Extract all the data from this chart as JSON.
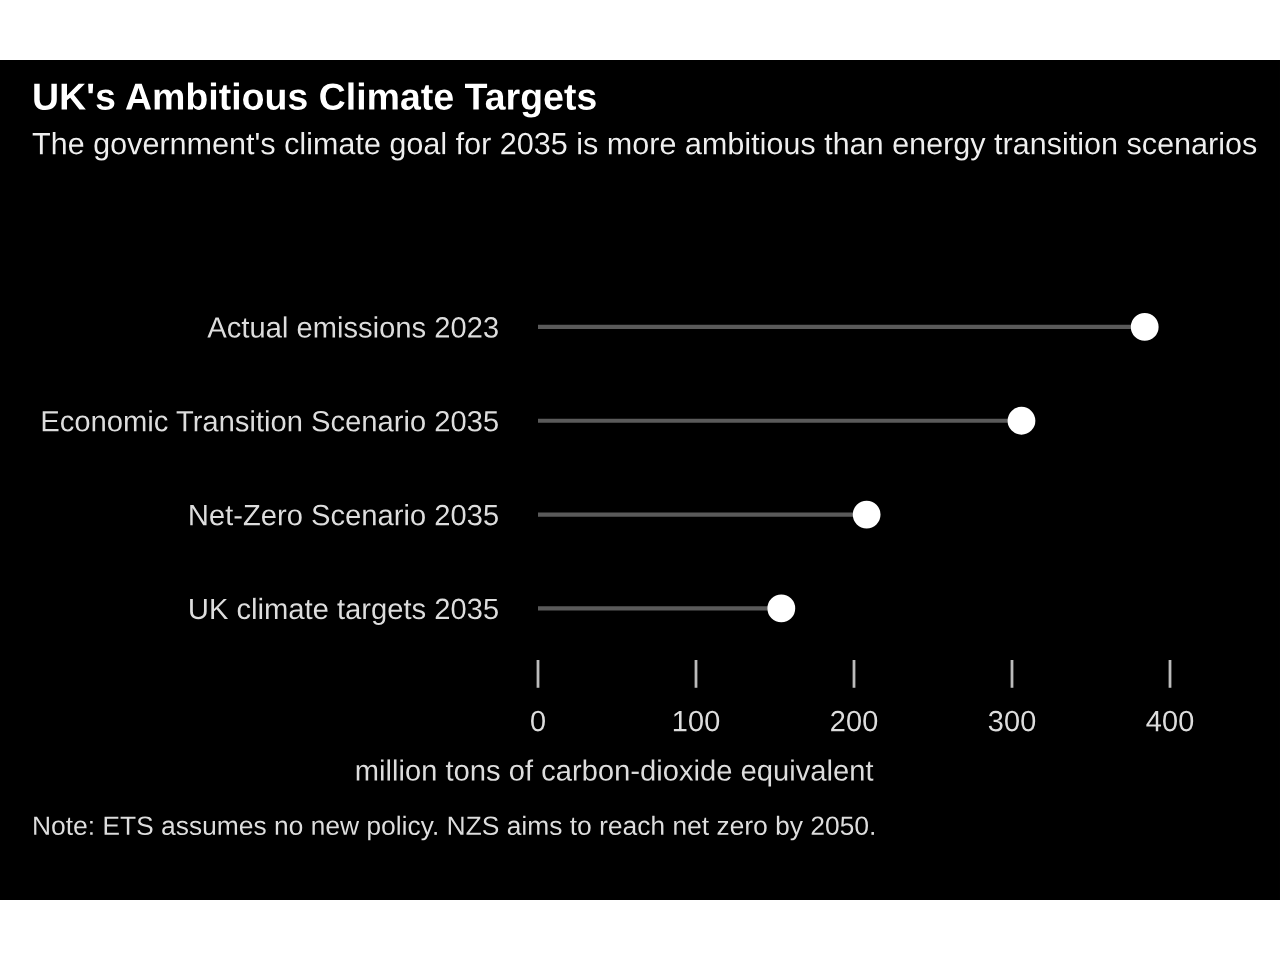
{
  "chart_data": {
    "type": "lollipop",
    "orientation": "horizontal",
    "title": "UK's Ambitious Climate Targets",
    "subtitle": "The government's climate goal for 2035 is more ambitious than energy transition scenarios",
    "categories": [
      "Actual emissions 2023",
      "Economic Transition Scenario 2035",
      "Net-Zero Scenario 2035",
      "UK climate targets 2035"
    ],
    "values": [
      384,
      306,
      208,
      154
    ],
    "color": "#ffffff",
    "xlim": [
      0,
      400
    ],
    "xticks": [
      0,
      100,
      200,
      300,
      400
    ],
    "xlabel": "million tons of carbon-dioxide equivalent",
    "annotations": [
      "Note: ETS assumes no new policy. NZS aims to reach net zero by 2050."
    ],
    "marker": "circle"
  }
}
